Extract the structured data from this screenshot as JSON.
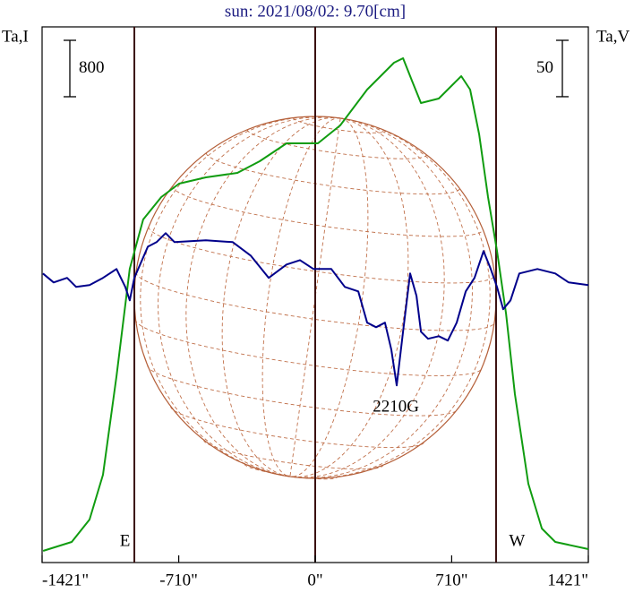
{
  "chart_data": {
    "type": "line",
    "title": "sun: 2021/08/02: 9.70[cm]",
    "y_label": "Ta,I",
    "y2_label": "Ta,V",
    "xlim": [
      -1421,
      1421
    ],
    "xticks": [
      {
        "value": -1421,
        "label": "-1421\""
      },
      {
        "value": -710,
        "label": "-710\""
      },
      {
        "value": 0,
        "label": "0\""
      },
      {
        "value": 710,
        "label": "710\""
      },
      {
        "value": 1421,
        "label": "1421\""
      }
    ],
    "ylim": [
      0,
      7595
    ],
    "y2lim": [
      -246,
      229
    ],
    "scale_bars": [
      {
        "value": 800,
        "axis": "y"
      },
      {
        "value": 50,
        "axis": "y2"
      }
    ],
    "vlines": [
      -941,
      0,
      941
    ],
    "annotations": [
      {
        "text": "E",
        "x": -990
      },
      {
        "text": "W",
        "x": 1050
      },
      {
        "text": "2210G",
        "x": 420
      }
    ],
    "series": [
      {
        "name": "Ta,I",
        "color": "#109c10",
        "axis": "y",
        "x": [
          -1416,
          -1267,
          -1174,
          -1104,
          -1034,
          -965,
          -895,
          -801,
          -708,
          -569,
          -405,
          -289,
          -149,
          14,
          130,
          270,
          410,
          457,
          503,
          550,
          643,
          713,
          760,
          806,
          853,
          899,
          946,
          993,
          1039,
          1109,
          1179,
          1249,
          1421
        ],
        "values": [
          165,
          292,
          610,
          1245,
          2642,
          4166,
          4864,
          5182,
          5372,
          5461,
          5525,
          5690,
          5944,
          5944,
          6198,
          6706,
          7087,
          7150,
          6833,
          6515,
          6579,
          6769,
          6896,
          6706,
          6071,
          5182,
          4420,
          3531,
          2388,
          1118,
          483,
          292,
          191
        ]
      },
      {
        "name": "Ta,V",
        "color": "#00008b",
        "axis": "y2",
        "x": [
          -1417,
          -1361,
          -1291,
          -1244,
          -1174,
          -1104,
          -1034,
          -988,
          -965,
          -941,
          -871,
          -825,
          -778,
          -732,
          -569,
          -429,
          -336,
          -242,
          -149,
          -79,
          -9,
          84,
          154,
          224,
          270,
          317,
          363,
          396,
          424,
          457,
          494,
          527,
          550,
          587,
          643,
          690,
          736,
          783,
          829,
          876,
          913,
          946,
          978,
          1016,
          1062,
          1156,
          1249,
          1319,
          1421
        ],
        "values": [
          10.3,
          2.4,
          6.4,
          -1.6,
          0,
          6.4,
          14.3,
          -1.6,
          -13.5,
          6.4,
          34.1,
          38.1,
          46.1,
          38.1,
          39.7,
          38.1,
          26.2,
          6.4,
          18.3,
          22.2,
          14.3,
          14.3,
          -1.6,
          -5.6,
          -33.3,
          -37.3,
          -33.3,
          -57.2,
          -88.9,
          -41.3,
          10.3,
          -9.5,
          -41.3,
          -47.6,
          -45.3,
          -49.2,
          -33.3,
          -5.6,
          6.4,
          30.2,
          14.3,
          -1.6,
          -21.4,
          -13.5,
          10.3,
          14.3,
          10.3,
          2.4,
          0
        ]
      }
    ]
  }
}
